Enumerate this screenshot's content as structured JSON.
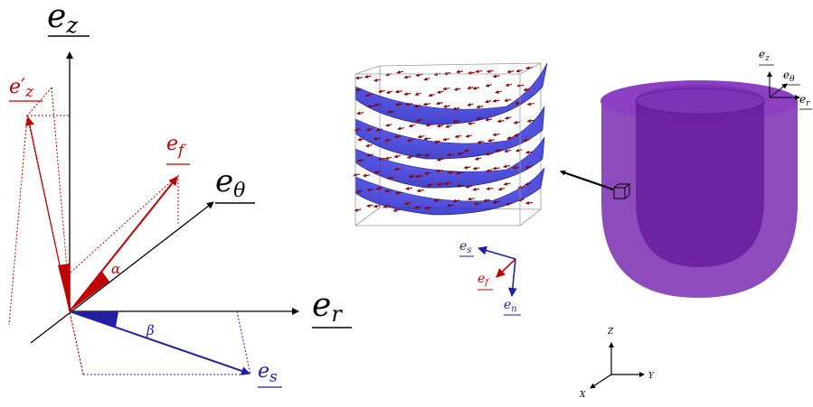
{
  "left_frame": {
    "axes": {
      "ez": "e",
      "ez_sub": "z",
      "etheta": "e",
      "etheta_sub": "θ",
      "er": "e",
      "er_sub": "r"
    },
    "vectors": {
      "ez_prime": "e′",
      "ez_prime_sub": "z",
      "ef": "e",
      "ef_sub": "f",
      "es": "e",
      "es_sub": "s"
    },
    "angles": {
      "alpha": "α",
      "beta": "β"
    },
    "colors": {
      "red": "#c00000",
      "blue": "#1f1fa8",
      "black": "#000000"
    }
  },
  "fiber_cube": {
    "labels": {
      "es": "e",
      "es_sub": "s",
      "ef": "e",
      "ef_sub": "f",
      "en": "e",
      "en_sub": "n"
    },
    "colors": {
      "sheet": "#2a2ae0",
      "fiber": "#8b0000"
    }
  },
  "ventricle": {
    "labels": {
      "ez": "e",
      "ez_sub": "z",
      "etheta": "e",
      "etheta_sub": "θ",
      "er": "e",
      "er_sub": "r"
    },
    "color": "#7a2bb0"
  },
  "global_axes": {
    "z": "Z",
    "y": "Y",
    "x": "X"
  }
}
